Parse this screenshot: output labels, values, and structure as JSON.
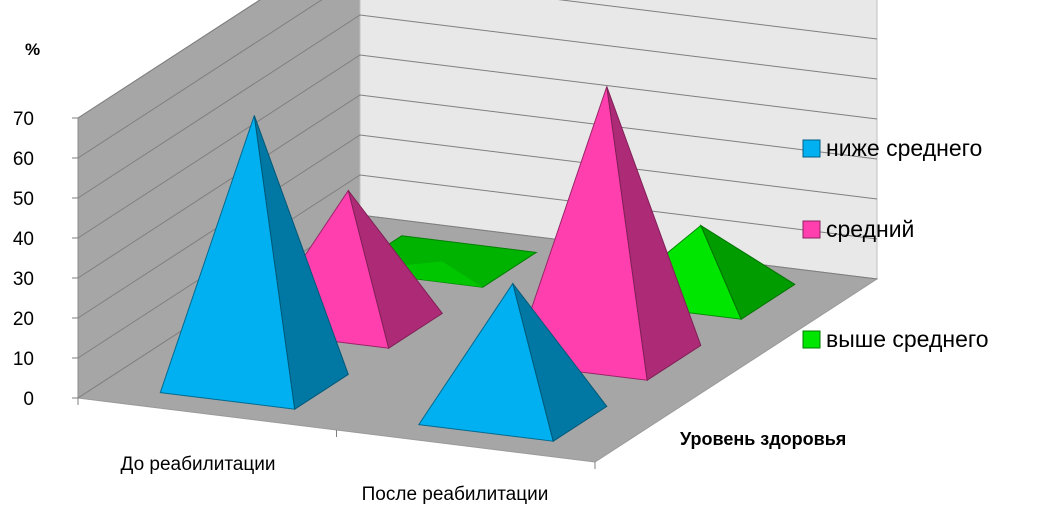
{
  "chart_data": {
    "type": "bar",
    "style": "3d-pyramid",
    "categories": [
      "До реабилитации",
      "После реабилитации"
    ],
    "series": [
      {
        "name": "ниже среднего",
        "values": [
          67,
          33
        ],
        "color": "#00B0F0"
      },
      {
        "name": "средний",
        "values": [
          33,
          67
        ],
        "color": "#FF3FAE"
      },
      {
        "name": "выше среднего",
        "values": [
          0,
          17
        ],
        "color": "#00E600"
      }
    ],
    "y_unit_label": "%",
    "depth_axis_label": "Уровень здоровья",
    "ylim": [
      0,
      70
    ],
    "y_ticks": [
      0,
      10,
      20,
      30,
      40,
      50,
      60,
      70
    ],
    "grid": true,
    "legend_position": "right"
  }
}
